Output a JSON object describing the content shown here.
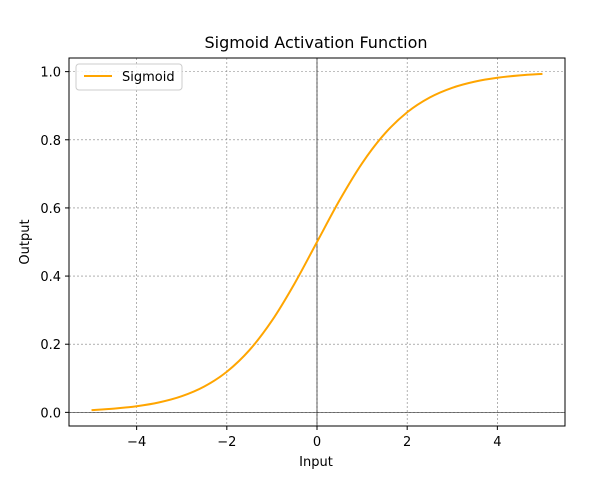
{
  "chart_data": {
    "type": "line",
    "title": "Sigmoid Activation Function",
    "xlabel": "Input",
    "ylabel": "Output",
    "xlim": [
      -5.5,
      5.5
    ],
    "ylim": [
      -0.04,
      1.04
    ],
    "xticks": [
      -4,
      -2,
      0,
      2,
      4
    ],
    "xtick_labels": [
      "−4",
      "−2",
      "0",
      "2",
      "4"
    ],
    "yticks": [
      0.0,
      0.2,
      0.4,
      0.6,
      0.8,
      1.0
    ],
    "ytick_labels": [
      "0.0",
      "0.2",
      "0.4",
      "0.6",
      "0.8",
      "1.0"
    ],
    "grid": true,
    "grid_style": "dashed",
    "grid_color": "#808080",
    "zero_lines": true,
    "legend": {
      "placement": "top-left"
    },
    "series": [
      {
        "name": "Sigmoid",
        "color": "#FFA500",
        "x": [
          -5,
          -4.5,
          -4,
          -3.5,
          -3,
          -2.5,
          -2,
          -1.5,
          -1,
          -0.5,
          0,
          0.5,
          1,
          1.5,
          2,
          2.5,
          3,
          3.5,
          4,
          4.5,
          5
        ],
        "y": [
          0.0067,
          0.011,
          0.018,
          0.0293,
          0.0474,
          0.0759,
          0.1192,
          0.1824,
          0.2689,
          0.3775,
          0.5,
          0.6225,
          0.7311,
          0.8176,
          0.8808,
          0.9241,
          0.9526,
          0.9707,
          0.982,
          0.989,
          0.9933
        ]
      }
    ]
  }
}
